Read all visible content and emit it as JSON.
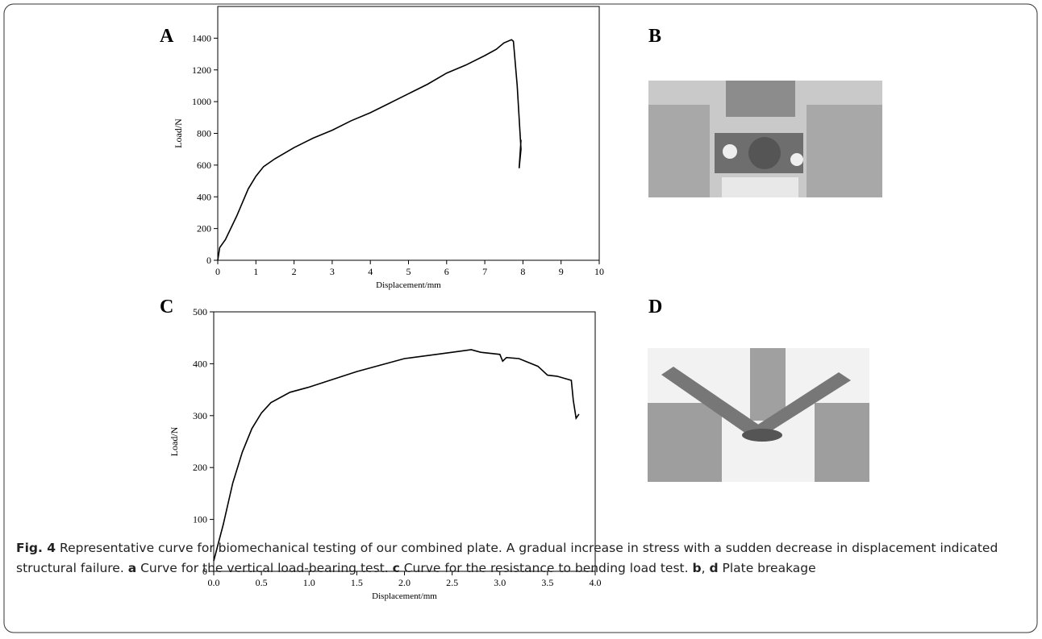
{
  "chart_data": [
    {
      "type": "line",
      "title": "A",
      "xlabel": "Displacement/mm",
      "ylabel": "Load/N",
      "xlim": [
        0,
        10
      ],
      "xticks": [
        0,
        1,
        2,
        3,
        4,
        5,
        6,
        7,
        8,
        9,
        10
      ],
      "ylim": [
        0,
        1600
      ],
      "yticks": [
        0,
        200,
        400,
        600,
        800,
        1000,
        1200,
        1400
      ],
      "x": [
        0,
        0.05,
        0.2,
        0.5,
        0.8,
        1,
        1.2,
        1.5,
        2,
        2.5,
        3,
        3.5,
        4,
        4.5,
        5,
        5.5,
        6,
        6.5,
        7,
        7.3,
        7.5,
        7.7,
        7.75,
        7.85,
        7.95,
        7.9,
        7.95
      ],
      "series": [
        {
          "color": "#000000",
          "values": [
            0,
            80,
            130,
            280,
            450,
            530,
            590,
            640,
            710,
            770,
            820,
            880,
            930,
            990,
            1050,
            1110,
            1180,
            1230,
            1290,
            1330,
            1370,
            1390,
            1380,
            1100,
            700,
            580,
            760
          ]
        }
      ]
    },
    {
      "type": "line",
      "title": "C",
      "xlabel": "Displacement/mm",
      "ylabel": "Load/N",
      "xlim": [
        0,
        4
      ],
      "xticks": [
        {
          "value": 0,
          "label": "0.0"
        },
        0.5,
        {
          "value": 1,
          "label": "1.0"
        },
        1.5,
        {
          "value": 2,
          "label": "2.0"
        },
        2.5,
        {
          "value": 3,
          "label": "3.0"
        },
        3.5,
        {
          "value": 4,
          "label": "4.0"
        }
      ],
      "ylim": [
        0,
        500
      ],
      "yticks": [
        0,
        100,
        200,
        300,
        400,
        500
      ],
      "x": [
        0,
        0.1,
        0.2,
        0.3,
        0.4,
        0.5,
        0.6,
        0.8,
        1,
        1.5,
        2,
        2.5,
        2.7,
        2.8,
        3,
        3.03,
        3.07,
        3.2,
        3.4,
        3.5,
        3.6,
        3.75,
        3.77,
        3.8,
        3.83
      ],
      "series": [
        {
          "color": "#000000",
          "values": [
            20,
            90,
            170,
            230,
            275,
            305,
            325,
            345,
            355,
            385,
            410,
            422,
            427,
            422,
            418,
            405,
            412,
            410,
            395,
            378,
            376,
            368,
            330,
            295,
            303
          ]
        }
      ]
    }
  ],
  "panels": [
    "B",
    "D"
  ],
  "caption": [
    "Fig. 4",
    " Representative curve for biomechanical testing of our combined plate. A gradual increase in stress with a sudden decrease in displacement indicated structural failure. ",
    "a",
    " Curve for the vertical load-bearing test. ",
    "c",
    " Curve for the resistance to bending load test. ",
    "b",
    ", ",
    "d",
    " Plate breakage"
  ]
}
